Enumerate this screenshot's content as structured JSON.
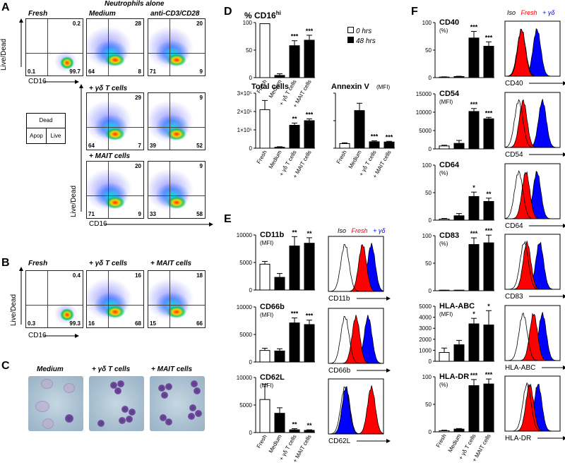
{
  "panel_labels": {
    "A": "A",
    "B": "B",
    "C": "C",
    "D": "D",
    "E": "E",
    "F": "F"
  },
  "panelA": {
    "header": "Neutrophils alone",
    "col_titles": [
      "Fresh",
      "Medium",
      "anti-CD3/CD28"
    ],
    "row_titles": [
      "+ γδ T cells",
      "+ MAIT cells"
    ],
    "ylabel": "Live/Dead",
    "xlabel": "CD16",
    "fresh_plot": {
      "ur": "0.2",
      "ll": "0.1",
      "lr": "99.7"
    },
    "plots": [
      {
        "ur": "28",
        "ll": "64",
        "lr": "8"
      },
      {
        "ur": "20",
        "ll": "71",
        "lr": "9"
      },
      {
        "ur": "29",
        "ll": "64",
        "lr": "7"
      },
      {
        "ur": "9",
        "ll": "39",
        "lr": "52"
      },
      {
        "ur": "20",
        "ll": "71",
        "lr": "9"
      },
      {
        "ur": "9",
        "ll": "33",
        "lr": "58"
      }
    ],
    "legend": {
      "dead": "Dead",
      "apop": "Apop",
      "live": "Live"
    }
  },
  "panelB": {
    "titles": [
      "Fresh",
      "+ γδ T cells",
      "+ MAIT cells"
    ],
    "ylabel": "Live/Dead",
    "xlabel": "CD16",
    "plots": [
      {
        "ur": "0.4",
        "ll": "0.3",
        "lr": "99.3"
      },
      {
        "ur": "16",
        "ll": "16",
        "lr": "68"
      },
      {
        "ur": "18",
        "ll": "15",
        "lr": "66"
      }
    ]
  },
  "panelC": {
    "titles": [
      "Medium",
      "+ γδ T cells",
      "+ MAIT cells"
    ]
  },
  "hist_legend": {
    "iso": "Iso",
    "fresh": "Fresh",
    "gd": "+ γδ",
    "fresh_color": "#ff0000",
    "gd_color": "#0000ff"
  },
  "categories_4": [
    "Fresh",
    "Medium",
    "+ γδ T cells",
    "+ MAIT cells"
  ],
  "categories_3": [
    "Medium",
    "+ γδ T cells",
    "+ MAIT cells"
  ],
  "chart_data": [
    {
      "panel": "D",
      "type": "bar",
      "title": "% CD16hi",
      "categories": [
        "Fresh",
        "Medium",
        "+ γδ T cells",
        "+ MAIT cells"
      ],
      "values": [
        98,
        4,
        58,
        68
      ],
      "errors": [
        0,
        3,
        9,
        9
      ],
      "fills": [
        "white",
        "black",
        "black",
        "black"
      ],
      "sig": [
        "",
        "",
        "***",
        "***"
      ],
      "yticks": [
        "0",
        "50",
        "100"
      ],
      "ylim": [
        0,
        100
      ],
      "legend": [
        "0 hrs",
        "48 hrs"
      ]
    },
    {
      "panel": "D",
      "type": "bar",
      "title": "Total cells",
      "categories": [
        "Fresh",
        "Medium",
        "+ γδ T cells",
        "+ MAIT cells"
      ],
      "values": [
        210000,
        5000,
        125000,
        150000
      ],
      "errors": [
        50000,
        3000,
        12000,
        10000
      ],
      "fills": [
        "white",
        "black",
        "black",
        "black"
      ],
      "sig": [
        "",
        "",
        "**",
        "***"
      ],
      "yticks": [
        "0",
        "1×10⁵",
        "2×10⁵",
        "3×10⁵"
      ],
      "ylim": [
        0,
        300000
      ]
    },
    {
      "panel": "D",
      "type": "bar",
      "title": "Annexin V",
      "unit": "(MFI)",
      "categories": [
        "Fresh",
        "Medium",
        "+ γδ T cells",
        "+ MAIT cells"
      ],
      "values": [
        100,
        820,
        140,
        135
      ],
      "errors": [
        15,
        160,
        20,
        15
      ],
      "fills": [
        "white",
        "black",
        "black",
        "black"
      ],
      "sig": [
        "",
        "",
        "***",
        "***"
      ],
      "yticks": [],
      "ylim": [
        0,
        1200
      ]
    },
    {
      "panel": "E",
      "type": "bar",
      "title": "CD11b",
      "unit": "(MFI)",
      "categories": [
        "Fresh",
        "Medium",
        "+ γδ T cells",
        "+ MAIT cells"
      ],
      "values": [
        4700,
        2300,
        8000,
        8500
      ],
      "errors": [
        500,
        700,
        1700,
        1000
      ],
      "fills": [
        "white",
        "black",
        "black",
        "black"
      ],
      "sig": [
        "",
        "",
        "**",
        "**"
      ],
      "yticks": [
        "0",
        "5000",
        "10000"
      ],
      "ylim": [
        0,
        10000
      ]
    },
    {
      "panel": "E",
      "type": "bar",
      "title": "CD66b",
      "unit": "(MFI)",
      "categories": [
        "Fresh",
        "Medium",
        "+ γδ T cells",
        "+ MAIT cells"
      ],
      "values": [
        2100,
        2000,
        7100,
        6800
      ],
      "errors": [
        400,
        400,
        900,
        800
      ],
      "fills": [
        "white",
        "black",
        "black",
        "black"
      ],
      "sig": [
        "",
        "",
        "***",
        "***"
      ],
      "yticks": [
        "0",
        "5000",
        "10000"
      ],
      "ylim": [
        0,
        10000
      ]
    },
    {
      "panel": "E",
      "type": "bar",
      "title": "CD62L",
      "unit": "(MFI)",
      "categories": [
        "Fresh",
        "Medium",
        "+ γδ T cells",
        "+ MAIT cells"
      ],
      "values": [
        6000,
        3500,
        500,
        400
      ],
      "errors": [
        2800,
        1000,
        200,
        100
      ],
      "fills": [
        "white",
        "black",
        "black",
        "black"
      ],
      "sig": [
        "",
        "",
        "**",
        "**"
      ],
      "yticks": [
        "0",
        "5000",
        "10000"
      ],
      "ylim": [
        0,
        10000
      ]
    },
    {
      "panel": "F",
      "type": "bar",
      "title": "CD40",
      "unit": "(%)",
      "categories": [
        "Fresh",
        "Medium",
        "+ γδ T cells",
        "+ MAIT cells"
      ],
      "values": [
        1,
        2,
        72,
        57
      ],
      "errors": [
        0.5,
        0.5,
        12,
        8
      ],
      "fills": [
        "white",
        "black",
        "black",
        "black"
      ],
      "sig": [
        "",
        "",
        "***",
        "***"
      ],
      "yticks": [
        "0",
        "50",
        "100"
      ],
      "ylim": [
        0,
        100
      ]
    },
    {
      "panel": "F",
      "type": "bar",
      "title": "CD54",
      "unit": "(MFI)",
      "categories": [
        "Fresh",
        "Medium",
        "+ γδ T cells",
        "+ MAIT cells"
      ],
      "values": [
        800,
        1500,
        10200,
        8200
      ],
      "errors": [
        200,
        800,
        800,
        400
      ],
      "fills": [
        "white",
        "black",
        "black",
        "black"
      ],
      "sig": [
        "",
        "",
        "***",
        "***"
      ],
      "yticks": [
        "0",
        "5000",
        "10000",
        "15000"
      ],
      "ylim": [
        0,
        15000
      ]
    },
    {
      "panel": "F",
      "type": "bar",
      "title": "CD64",
      "unit": "(%)",
      "categories": [
        "Fresh",
        "Medium",
        "+ γδ T cells",
        "+ MAIT cells"
      ],
      "values": [
        2,
        8,
        43,
        34
      ],
      "errors": [
        1,
        4,
        8,
        6
      ],
      "fills": [
        "white",
        "black",
        "black",
        "black"
      ],
      "sig": [
        "",
        "",
        "*",
        "**"
      ],
      "yticks": [
        "0",
        "50",
        "100"
      ],
      "ylim": [
        0,
        100
      ]
    },
    {
      "panel": "F",
      "type": "bar",
      "title": "CD83",
      "unit": "(%)",
      "categories": [
        "Fresh",
        "Medium",
        "+ γδ T cells",
        "+ MAIT cells"
      ],
      "values": [
        0.5,
        0.5,
        84,
        87
      ],
      "errors": [
        0.3,
        0.3,
        12,
        14
      ],
      "fills": [
        "white",
        "black",
        "black",
        "black"
      ],
      "sig": [
        "",
        "",
        "***",
        "***"
      ],
      "yticks": [
        "0",
        "50",
        "100"
      ],
      "ylim": [
        0,
        100
      ]
    },
    {
      "panel": "F",
      "type": "bar",
      "title": "HLA-ABC",
      "unit": "(MFI)",
      "categories": [
        "Fresh",
        "Medium",
        "+ γδ T cells",
        "+ MAIT cells"
      ],
      "values": [
        800,
        1500,
        3400,
        3300
      ],
      "errors": [
        400,
        400,
        500,
        1300
      ],
      "fills": [
        "white",
        "black",
        "black",
        "black"
      ],
      "sig": [
        "",
        "",
        "*",
        "*"
      ],
      "yticks": [
        "0",
        "1000",
        "2000",
        "3000",
        "4000",
        "5000"
      ],
      "ylim": [
        0,
        5000
      ]
    },
    {
      "panel": "F",
      "type": "bar",
      "title": "HLA-DR",
      "unit": "(%)",
      "categories": [
        "Fresh",
        "Medium",
        "+ γδ T cells",
        "+ MAIT cells"
      ],
      "values": [
        2,
        5,
        84,
        87
      ],
      "errors": [
        1,
        1,
        11,
        9
      ],
      "fills": [
        "white",
        "black",
        "black",
        "black"
      ],
      "sig": [
        "",
        "",
        "***",
        "***"
      ],
      "yticks": [
        "0",
        "50",
        "100"
      ],
      "ylim": [
        0,
        100
      ]
    }
  ],
  "histograms": [
    {
      "panel": "E",
      "marker": "CD11b",
      "iso_mean": 0.3,
      "fresh_mean": 0.62,
      "gd_mean": 0.78
    },
    {
      "panel": "E",
      "marker": "CD66b",
      "iso_mean": 0.3,
      "fresh_mean": 0.5,
      "gd_mean": 0.72
    },
    {
      "panel": "E",
      "marker": "CD62L",
      "iso_mean": 0.3,
      "fresh_mean": 0.78,
      "gd_mean": 0.32
    },
    {
      "panel": "F",
      "marker": "CD40",
      "iso_mean": 0.3,
      "fresh_mean": 0.3,
      "gd_mean": 0.58
    },
    {
      "panel": "F",
      "marker": "CD54",
      "iso_mean": 0.25,
      "fresh_mean": 0.33,
      "gd_mean": 0.68
    },
    {
      "panel": "F",
      "marker": "CD64",
      "iso_mean": 0.25,
      "fresh_mean": 0.38,
      "gd_mean": 0.58
    },
    {
      "panel": "F",
      "marker": "CD83",
      "iso_mean": 0.35,
      "fresh_mean": 0.4,
      "gd_mean": 0.63
    },
    {
      "panel": "F",
      "marker": "HLA-ABC",
      "iso_mean": 0.33,
      "fresh_mean": 0.52,
      "gd_mean": 0.68
    },
    {
      "panel": "F",
      "marker": "HLA-DR",
      "iso_mean": 0.4,
      "fresh_mean": 0.45,
      "gd_mean": 0.6
    }
  ]
}
